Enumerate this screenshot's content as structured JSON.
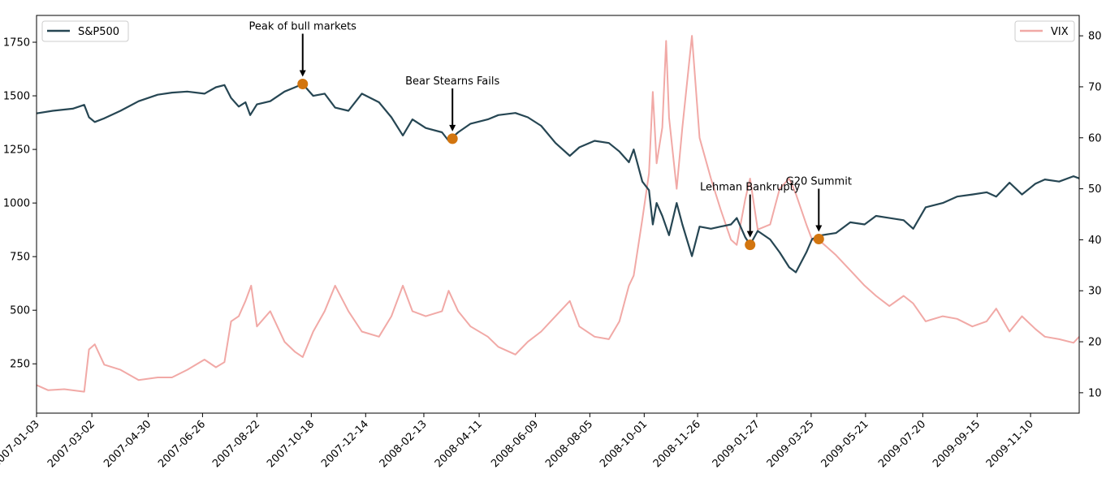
{
  "chart_data": {
    "type": "line",
    "title": "",
    "xlabel": "",
    "ylabel_left": "",
    "ylabel_right": "",
    "x_range": [
      "2007-01-03",
      "2009-12-31"
    ],
    "ylim_left": [
      20,
      1875
    ],
    "ylim_right": [
      6,
      84
    ],
    "y_ticks_left": [
      250,
      500,
      750,
      1000,
      1250,
      1500,
      1750
    ],
    "y_ticks_right": [
      10,
      20,
      30,
      40,
      50,
      60,
      70,
      80
    ],
    "x_ticks": [
      "2007-01-03",
      "2007-03-02",
      "2007-04-30",
      "2007-06-26",
      "2007-08-22",
      "2007-10-18",
      "2007-12-14",
      "2008-02-13",
      "2008-04-11",
      "2008-06-09",
      "2008-08-05",
      "2008-10-01",
      "2008-11-26",
      "2009-01-27",
      "2009-03-25",
      "2009-05-21",
      "2009-07-20",
      "2009-09-15",
      "2009-11-10"
    ],
    "series": [
      {
        "name": "S&P500",
        "axis": "left",
        "color": "#264653",
        "points": [
          [
            "2007-01-03",
            1418
          ],
          [
            "2007-01-20",
            1430
          ],
          [
            "2007-02-10",
            1440
          ],
          [
            "2007-02-22",
            1458
          ],
          [
            "2007-02-27",
            1400
          ],
          [
            "2007-03-05",
            1378
          ],
          [
            "2007-03-15",
            1395
          ],
          [
            "2007-04-01",
            1430
          ],
          [
            "2007-04-20",
            1475
          ],
          [
            "2007-05-10",
            1505
          ],
          [
            "2007-05-25",
            1515
          ],
          [
            "2007-06-10",
            1520
          ],
          [
            "2007-06-28",
            1510
          ],
          [
            "2007-07-10",
            1540
          ],
          [
            "2007-07-19",
            1550
          ],
          [
            "2007-07-26",
            1490
          ],
          [
            "2007-08-03",
            1450
          ],
          [
            "2007-08-10",
            1470
          ],
          [
            "2007-08-15",
            1410
          ],
          [
            "2007-08-22",
            1460
          ],
          [
            "2007-09-05",
            1475
          ],
          [
            "2007-09-20",
            1520
          ],
          [
            "2007-10-01",
            1540
          ],
          [
            "2007-10-09",
            1555
          ],
          [
            "2007-10-20",
            1500
          ],
          [
            "2007-11-01",
            1510
          ],
          [
            "2007-11-12",
            1445
          ],
          [
            "2007-11-26",
            1430
          ],
          [
            "2007-12-10",
            1510
          ],
          [
            "2007-12-28",
            1470
          ],
          [
            "2008-01-10",
            1400
          ],
          [
            "2008-01-22",
            1315
          ],
          [
            "2008-02-01",
            1390
          ],
          [
            "2008-02-15",
            1350
          ],
          [
            "2008-03-03",
            1330
          ],
          [
            "2008-03-10",
            1290
          ],
          [
            "2008-03-20",
            1330
          ],
          [
            "2008-04-02",
            1370
          ],
          [
            "2008-04-20",
            1390
          ],
          [
            "2008-05-01",
            1410
          ],
          [
            "2008-05-19",
            1420
          ],
          [
            "2008-06-01",
            1400
          ],
          [
            "2008-06-15",
            1360
          ],
          [
            "2008-06-30",
            1280
          ],
          [
            "2008-07-15",
            1220
          ],
          [
            "2008-07-25",
            1260
          ],
          [
            "2008-08-10",
            1290
          ],
          [
            "2008-08-25",
            1280
          ],
          [
            "2008-09-05",
            1240
          ],
          [
            "2008-09-15",
            1190
          ],
          [
            "2008-09-20",
            1250
          ],
          [
            "2008-09-29",
            1100
          ],
          [
            "2008-10-06",
            1060
          ],
          [
            "2008-10-10",
            900
          ],
          [
            "2008-10-14",
            1000
          ],
          [
            "2008-10-20",
            940
          ],
          [
            "2008-10-27",
            850
          ],
          [
            "2008-11-04",
            1000
          ],
          [
            "2008-11-10",
            900
          ],
          [
            "2008-11-20",
            752
          ],
          [
            "2008-11-28",
            890
          ],
          [
            "2008-12-10",
            880
          ],
          [
            "2008-12-20",
            890
          ],
          [
            "2008-12-31",
            900
          ],
          [
            "2009-01-06",
            930
          ],
          [
            "2009-01-15",
            840
          ],
          [
            "2009-01-20",
            805
          ],
          [
            "2009-01-28",
            870
          ],
          [
            "2009-02-10",
            830
          ],
          [
            "2009-02-20",
            770
          ],
          [
            "2009-03-02",
            700
          ],
          [
            "2009-03-09",
            677
          ],
          [
            "2009-03-20",
            770
          ],
          [
            "2009-03-26",
            832
          ],
          [
            "2009-04-05",
            850
          ],
          [
            "2009-04-20",
            860
          ],
          [
            "2009-05-05",
            910
          ],
          [
            "2009-05-20",
            900
          ],
          [
            "2009-06-01",
            940
          ],
          [
            "2009-06-15",
            930
          ],
          [
            "2009-06-30",
            920
          ],
          [
            "2009-07-10",
            880
          ],
          [
            "2009-07-23",
            980
          ],
          [
            "2009-08-10",
            1000
          ],
          [
            "2009-08-25",
            1030
          ],
          [
            "2009-09-10",
            1040
          ],
          [
            "2009-09-25",
            1050
          ],
          [
            "2009-10-05",
            1030
          ],
          [
            "2009-10-19",
            1095
          ],
          [
            "2009-11-01",
            1040
          ],
          [
            "2009-11-15",
            1090
          ],
          [
            "2009-11-25",
            1110
          ],
          [
            "2009-12-10",
            1100
          ],
          [
            "2009-12-25",
            1125
          ],
          [
            "2009-12-31",
            1115
          ]
        ]
      },
      {
        "name": "VIX",
        "axis": "right",
        "color": "#e76f6b",
        "points": [
          [
            "2007-01-03",
            11.5
          ],
          [
            "2007-01-15",
            10.5
          ],
          [
            "2007-02-01",
            10.7
          ],
          [
            "2007-02-22",
            10.2
          ],
          [
            "2007-02-27",
            18.5
          ],
          [
            "2007-03-05",
            19.5
          ],
          [
            "2007-03-15",
            15.5
          ],
          [
            "2007-04-01",
            14.5
          ],
          [
            "2007-04-20",
            12.5
          ],
          [
            "2007-05-10",
            13.0
          ],
          [
            "2007-05-25",
            13.0
          ],
          [
            "2007-06-10",
            14.5
          ],
          [
            "2007-06-28",
            16.5
          ],
          [
            "2007-07-10",
            15.0
          ],
          [
            "2007-07-19",
            16.0
          ],
          [
            "2007-07-26",
            24.0
          ],
          [
            "2007-08-03",
            25.0
          ],
          [
            "2007-08-10",
            28.0
          ],
          [
            "2007-08-16",
            31.0
          ],
          [
            "2007-08-22",
            23.0
          ],
          [
            "2007-09-05",
            26.0
          ],
          [
            "2007-09-20",
            20.0
          ],
          [
            "2007-10-01",
            18.0
          ],
          [
            "2007-10-09",
            17.0
          ],
          [
            "2007-10-20",
            22.0
          ],
          [
            "2007-11-01",
            26.0
          ],
          [
            "2007-11-12",
            31.0
          ],
          [
            "2007-11-26",
            26.0
          ],
          [
            "2007-12-10",
            22.0
          ],
          [
            "2007-12-28",
            21.0
          ],
          [
            "2008-01-10",
            25.0
          ],
          [
            "2008-01-22",
            31.0
          ],
          [
            "2008-02-01",
            26.0
          ],
          [
            "2008-02-15",
            25.0
          ],
          [
            "2008-03-03",
            26.0
          ],
          [
            "2008-03-10",
            30.0
          ],
          [
            "2008-03-20",
            26.0
          ],
          [
            "2008-04-02",
            23.0
          ],
          [
            "2008-04-20",
            21.0
          ],
          [
            "2008-05-01",
            19.0
          ],
          [
            "2008-05-19",
            17.5
          ],
          [
            "2008-06-01",
            20.0
          ],
          [
            "2008-06-15",
            22.0
          ],
          [
            "2008-06-30",
            25.0
          ],
          [
            "2008-07-15",
            28.0
          ],
          [
            "2008-07-25",
            23.0
          ],
          [
            "2008-08-10",
            21.0
          ],
          [
            "2008-08-25",
            20.5
          ],
          [
            "2008-09-05",
            24.0
          ],
          [
            "2008-09-15",
            31.0
          ],
          [
            "2008-09-20",
            33.0
          ],
          [
            "2008-09-29",
            44.0
          ],
          [
            "2008-10-06",
            53.0
          ],
          [
            "2008-10-10",
            69.0
          ],
          [
            "2008-10-14",
            55.0
          ],
          [
            "2008-10-20",
            62.0
          ],
          [
            "2008-10-24",
            79.0
          ],
          [
            "2008-10-27",
            64.0
          ],
          [
            "2008-11-04",
            50.0
          ],
          [
            "2008-11-10",
            62.0
          ],
          [
            "2008-11-20",
            80.0
          ],
          [
            "2008-11-28",
            60.0
          ],
          [
            "2008-12-10",
            52.0
          ],
          [
            "2008-12-20",
            46.0
          ],
          [
            "2008-12-31",
            40.0
          ],
          [
            "2009-01-06",
            39.0
          ],
          [
            "2009-01-15",
            48.0
          ],
          [
            "2009-01-20",
            52.0
          ],
          [
            "2009-01-28",
            42.0
          ],
          [
            "2009-02-10",
            43.0
          ],
          [
            "2009-02-20",
            50.0
          ],
          [
            "2009-03-02",
            52.0
          ],
          [
            "2009-03-09",
            49.0
          ],
          [
            "2009-03-20",
            43.0
          ],
          [
            "2009-03-26",
            40.0
          ],
          [
            "2009-04-05",
            39.5
          ],
          [
            "2009-04-20",
            37.0
          ],
          [
            "2009-05-05",
            34.0
          ],
          [
            "2009-05-20",
            31.0
          ],
          [
            "2009-06-01",
            29.0
          ],
          [
            "2009-06-15",
            27.0
          ],
          [
            "2009-06-30",
            29.0
          ],
          [
            "2009-07-10",
            27.5
          ],
          [
            "2009-07-23",
            24.0
          ],
          [
            "2009-08-10",
            25.0
          ],
          [
            "2009-08-25",
            24.5
          ],
          [
            "2009-09-10",
            23.0
          ],
          [
            "2009-09-25",
            24.0
          ],
          [
            "2009-10-05",
            26.5
          ],
          [
            "2009-10-19",
            22.0
          ],
          [
            "2009-11-01",
            25.0
          ],
          [
            "2009-11-15",
            22.5
          ],
          [
            "2009-11-25",
            21.0
          ],
          [
            "2009-12-10",
            20.5
          ],
          [
            "2009-12-25",
            19.8
          ],
          [
            "2009-12-31",
            21.0
          ]
        ]
      }
    ],
    "annotations": [
      {
        "label": "Peak of bull markets",
        "date": "2007-10-09",
        "value": 1555
      },
      {
        "label": "Bear Stearns Fails",
        "date": "2008-03-14",
        "value": 1300
      },
      {
        "label": "Lehman Bankrupty",
        "date": "2009-01-20",
        "value": 805
      },
      {
        "label": "G20 Summit",
        "date": "2009-04-02",
        "value": 832
      }
    ],
    "legend": [
      {
        "label": "S&P500",
        "position": "upper-left"
      },
      {
        "label": "VIX",
        "position": "upper-right"
      }
    ],
    "marker_color": "#d2750f"
  }
}
